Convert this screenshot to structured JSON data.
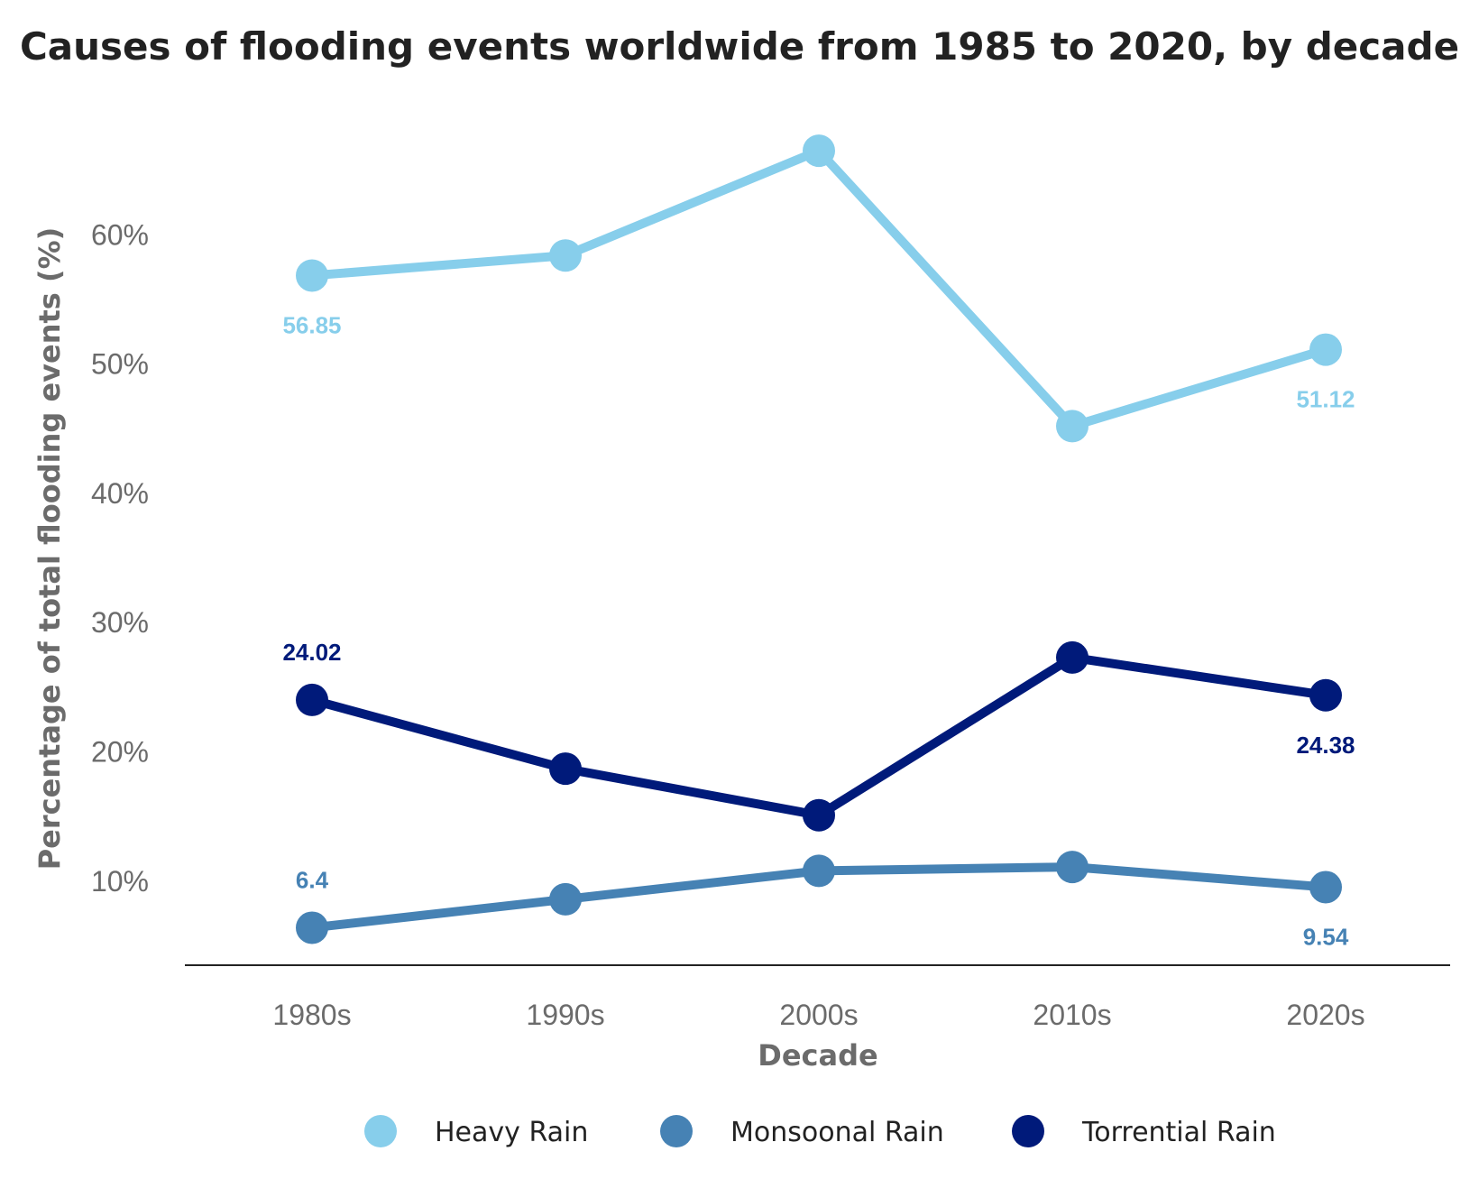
{
  "chart_data": {
    "type": "line",
    "title": "Causes of flooding events worldwide from 1985 to 2020, by decade",
    "xlabel": "Decade",
    "ylabel": "Percentage of total flooding events (%)",
    "categories": [
      "1980s",
      "1990s",
      "2000s",
      "2010s",
      "2020s"
    ],
    "ylim": [
      3.5,
      70
    ],
    "yticks": [
      10,
      20,
      30,
      40,
      50,
      60
    ],
    "ytick_labels": [
      "10%",
      "20%",
      "30%",
      "40%",
      "50%",
      "60%"
    ],
    "grid": false,
    "legend_position": "bottom",
    "series": [
      {
        "name": "Heavy Rain",
        "color": "#87ceeb",
        "values": [
          56.85,
          58.4,
          66.5,
          45.2,
          51.12
        ],
        "data_labels": [
          {
            "index": 0,
            "text": "56.85",
            "position": "below"
          },
          {
            "index": 4,
            "text": "51.12",
            "position": "below"
          }
        ]
      },
      {
        "name": "Monsoonal Rain",
        "color": "#4682b4",
        "values": [
          6.4,
          8.6,
          10.8,
          11.1,
          9.54
        ],
        "data_labels": [
          {
            "index": 0,
            "text": "6.4",
            "position": "above"
          },
          {
            "index": 4,
            "text": "9.54",
            "position": "below"
          }
        ]
      },
      {
        "name": "Torrential Rain",
        "color": "#001a7a",
        "values": [
          24.02,
          18.7,
          15.1,
          27.3,
          24.38
        ],
        "data_labels": [
          {
            "index": 0,
            "text": "24.02",
            "position": "above"
          },
          {
            "index": 4,
            "text": "24.38",
            "position": "below"
          }
        ]
      }
    ]
  }
}
